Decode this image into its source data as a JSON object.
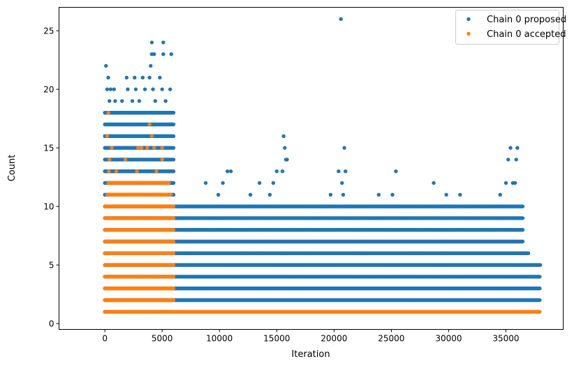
{
  "chart_data": {
    "type": "scatter",
    "title": "",
    "xlabel": "Iteration",
    "ylabel": "Count",
    "xlim": [
      -4000,
      40000
    ],
    "ylim": [
      -0.5,
      27
    ],
    "xticks": [
      0,
      5000,
      10000,
      15000,
      20000,
      25000,
      30000,
      35000
    ],
    "xtick_labels": [
      "0",
      "5000",
      "10000",
      "15000",
      "20000",
      "25000",
      "30000",
      "35000"
    ],
    "yticks": [
      0,
      5,
      10,
      15,
      20,
      25
    ],
    "ytick_labels": [
      "0",
      "5",
      "10",
      "15",
      "20",
      "25"
    ],
    "grid": false,
    "legend_position": "top-right",
    "series": [
      {
        "name": "Chain 0 proposed",
        "color": "#1f77b4",
        "marker": "circle",
        "bands": [
          {
            "y": 1,
            "x_start": 0,
            "x_end": 6000
          },
          {
            "y": 2,
            "x_start": 0,
            "x_end": 38000
          },
          {
            "y": 3,
            "x_start": 0,
            "x_end": 38000
          },
          {
            "y": 4,
            "x_start": 0,
            "x_end": 38000
          },
          {
            "y": 5,
            "x_start": 0,
            "x_end": 38000
          },
          {
            "y": 6,
            "x_start": 0,
            "x_end": 37000
          },
          {
            "y": 7,
            "x_start": 0,
            "x_end": 36500
          },
          {
            "y": 8,
            "x_start": 0,
            "x_end": 36500
          },
          {
            "y": 9,
            "x_start": 0,
            "x_end": 36500
          },
          {
            "y": 10,
            "x_start": 0,
            "x_end": 36500
          },
          {
            "y": 11,
            "x_start": 0,
            "x_end": 6000
          },
          {
            "y": 12,
            "x_start": 0,
            "x_end": 6000
          },
          {
            "y": 13,
            "x_start": 0,
            "x_end": 6000
          },
          {
            "y": 14,
            "x_start": 0,
            "x_end": 6000
          },
          {
            "y": 15,
            "x_start": 0,
            "x_end": 6000
          },
          {
            "y": 16,
            "x_start": 0,
            "x_end": 6000
          },
          {
            "y": 17,
            "x_start": 0,
            "x_end": 6000
          },
          {
            "y": 18,
            "x_start": 0,
            "x_end": 6000
          }
        ],
        "sparse_points": [
          [
            100,
            22
          ],
          [
            300,
            21
          ],
          [
            200,
            20
          ],
          [
            500,
            20
          ],
          [
            800,
            20
          ],
          [
            400,
            19
          ],
          [
            900,
            19
          ],
          [
            1900,
            21
          ],
          [
            2600,
            21
          ],
          [
            3300,
            21
          ],
          [
            3900,
            21
          ],
          [
            4800,
            21
          ],
          [
            2000,
            20
          ],
          [
            2700,
            20
          ],
          [
            3500,
            20
          ],
          [
            4200,
            20
          ],
          [
            5000,
            20
          ],
          [
            5700,
            20
          ],
          [
            1500,
            19
          ],
          [
            2400,
            19
          ],
          [
            3000,
            19
          ],
          [
            4400,
            19
          ],
          [
            5300,
            19
          ],
          [
            4000,
            22
          ],
          [
            4100,
            23
          ],
          [
            4300,
            23
          ],
          [
            5800,
            23
          ],
          [
            5100,
            23
          ],
          [
            4100,
            24
          ],
          [
            5100,
            24
          ],
          [
            20600,
            26
          ],
          [
            8800,
            12
          ],
          [
            10700,
            13
          ],
          [
            11000,
            13
          ],
          [
            9900,
            11
          ],
          [
            10300,
            12
          ],
          [
            12700,
            11
          ],
          [
            13500,
            12
          ],
          [
            14400,
            11
          ],
          [
            14700,
            12
          ],
          [
            15000,
            13
          ],
          [
            15600,
            16
          ],
          [
            15700,
            15
          ],
          [
            15800,
            14
          ],
          [
            15900,
            14
          ],
          [
            15500,
            13
          ],
          [
            17800,
            9
          ],
          [
            18500,
            10
          ],
          [
            19300,
            10
          ],
          [
            19700,
            11
          ],
          [
            20100,
            9
          ],
          [
            20400,
            13
          ],
          [
            20700,
            12
          ],
          [
            20900,
            15
          ],
          [
            21000,
            13
          ],
          [
            20800,
            11
          ],
          [
            23900,
            11
          ],
          [
            24500,
            10
          ],
          [
            25100,
            11
          ],
          [
            25400,
            13
          ],
          [
            25700,
            10
          ],
          [
            28700,
            12
          ],
          [
            29300,
            10
          ],
          [
            29800,
            11
          ],
          [
            30400,
            10
          ],
          [
            31000,
            11
          ],
          [
            31600,
            10
          ],
          [
            33300,
            10
          ],
          [
            34500,
            11
          ],
          [
            35000,
            12
          ],
          [
            35200,
            14
          ],
          [
            35400,
            15
          ],
          [
            35600,
            12
          ],
          [
            35800,
            12
          ],
          [
            35900,
            14
          ],
          [
            36000,
            15
          ],
          [
            38000,
            5
          ],
          [
            37200,
            4
          ],
          [
            36800,
            3
          ]
        ]
      },
      {
        "name": "Chain 0 accepted",
        "color": "#ff7f0e",
        "marker": "circle",
        "bands": [
          {
            "y": 1,
            "x_start": 0,
            "x_end": 38000
          },
          {
            "y": 2,
            "x_start": 0,
            "x_end": 6000
          },
          {
            "y": 3,
            "x_start": 0,
            "x_end": 6000
          },
          {
            "y": 4,
            "x_start": 0,
            "x_end": 6000
          },
          {
            "y": 5,
            "x_start": 0,
            "x_end": 6000
          },
          {
            "y": 6,
            "x_start": 0,
            "x_end": 6000
          },
          {
            "y": 7,
            "x_start": 0,
            "x_end": 6000
          },
          {
            "y": 8,
            "x_start": 0,
            "x_end": 6000
          },
          {
            "y": 9,
            "x_start": 0,
            "x_end": 6000
          },
          {
            "y": 10,
            "x_start": 0,
            "x_end": 6000
          },
          {
            "y": 11,
            "x_start": 200,
            "x_end": 5800
          },
          {
            "y": 12,
            "x_start": 300,
            "x_end": 5600
          }
        ],
        "sparse_points": [
          [
            300,
            18
          ],
          [
            200,
            16
          ],
          [
            400,
            14
          ],
          [
            350,
            13
          ],
          [
            600,
            15
          ],
          [
            1000,
            13
          ],
          [
            2900,
            15
          ],
          [
            3200,
            15
          ],
          [
            3700,
            15
          ],
          [
            4100,
            16
          ],
          [
            4300,
            15
          ],
          [
            5000,
            15
          ],
          [
            3900,
            17
          ],
          [
            5000,
            14
          ],
          [
            2800,
            13
          ],
          [
            4500,
            13
          ],
          [
            1800,
            14
          ]
        ]
      }
    ]
  }
}
